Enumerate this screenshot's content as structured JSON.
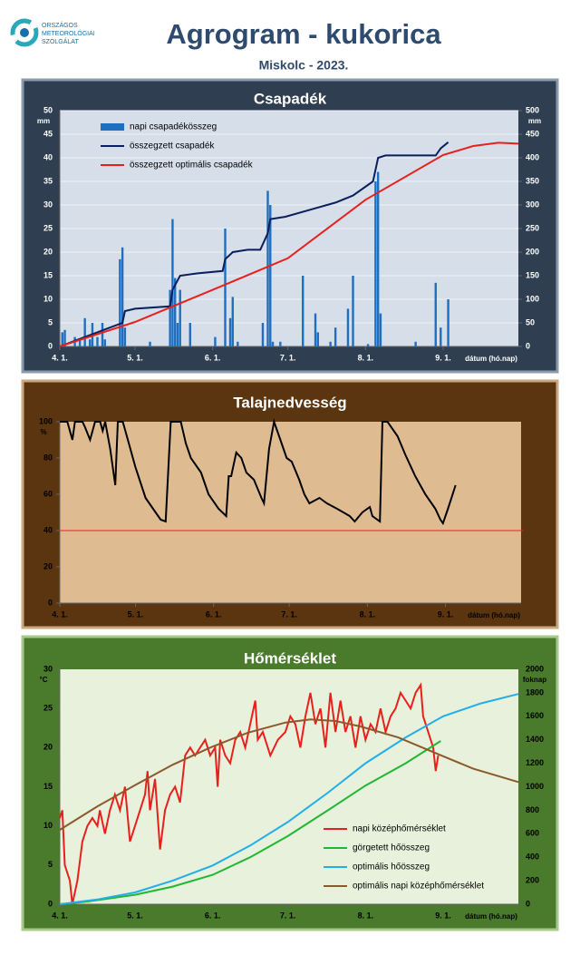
{
  "header": {
    "org": [
      "ORSZÁGOS",
      "METEOROLÓGIAI",
      "SZOLGÁLAT"
    ],
    "title": "Agrogram - kukorica",
    "subtitle": "Miskolc - 2023."
  },
  "chart_data": [
    {
      "type": "bar",
      "title": "Csapadék",
      "y_unit": "mm",
      "y2_unit": "mm",
      "x_label": "dátum (hó.nap)",
      "grid": true,
      "legend": "upper left",
      "xlim": [
        0,
        183
      ],
      "xticks": [
        {
          "value": 0,
          "label": "4. 1."
        },
        {
          "value": 30,
          "label": "5. 1."
        },
        {
          "value": 61,
          "label": "6. 1."
        },
        {
          "value": 91,
          "label": "7. 1."
        },
        {
          "value": 122,
          "label": "8. 1."
        },
        {
          "value": 153,
          "label": "9. 1."
        }
      ],
      "ylim": [
        0,
        50
      ],
      "yticks": [
        0,
        5,
        10,
        15,
        20,
        25,
        30,
        35,
        40,
        45,
        50
      ],
      "y2lim": [
        0,
        500
      ],
      "y2ticks": [
        0,
        50,
        100,
        150,
        200,
        250,
        300,
        350,
        400,
        450,
        500
      ],
      "series": [
        {
          "name": "napi csapadékösszeg",
          "type": "bar",
          "color": "#1f6fc0",
          "x": [
            1,
            2,
            6,
            8,
            10,
            12,
            13,
            15,
            17,
            18,
            24,
            25,
            26,
            36,
            44,
            45,
            46,
            47,
            48,
            52,
            62,
            66,
            68,
            69,
            71,
            81,
            83,
            84,
            85,
            88,
            97,
            102,
            103,
            108,
            110,
            115,
            117,
            123,
            126,
            127,
            128,
            142,
            150,
            152,
            155
          ],
          "values": [
            3,
            3.5,
            2,
            1.5,
            6,
            1.5,
            5,
            2,
            5,
            1.5,
            18.5,
            21,
            4,
            1,
            12,
            27,
            14.5,
            5,
            12,
            5,
            2,
            25,
            6,
            10.5,
            1,
            5,
            33,
            30,
            1,
            1,
            15,
            7,
            3,
            1,
            4,
            8,
            15,
            0.5,
            35,
            37,
            7,
            1,
            13.5,
            4,
            10
          ]
        },
        {
          "name": "összegzett csapadék",
          "type": "line",
          "axis": "y2",
          "color": "#0a1f5c",
          "x": [
            0,
            10,
            20,
            25,
            26,
            30,
            44,
            45,
            48,
            55,
            65,
            66,
            69,
            75,
            80,
            83,
            84,
            90,
            100,
            110,
            117,
            125,
            127,
            130,
            150,
            152,
            155
          ],
          "values": [
            0,
            20,
            40,
            50,
            75,
            80,
            85,
            120,
            150,
            155,
            160,
            185,
            200,
            205,
            205,
            240,
            270,
            275,
            290,
            305,
            320,
            350,
            400,
            405,
            405,
            420,
            433
          ]
        },
        {
          "name": "összegzett optimális  csapadék",
          "type": "line",
          "axis": "y2",
          "color": "#e8201c",
          "x": [
            0,
            30,
            61,
            91,
            122,
            153,
            165,
            175,
            183
          ],
          "values": [
            0,
            52,
            120,
            187,
            311,
            406,
            425,
            432,
            430
          ]
        }
      ]
    },
    {
      "type": "line",
      "title": "Talajnedvesség",
      "y_unit": "%",
      "x_label": "dátum (hó.nap)",
      "grid": false,
      "xlim": [
        0,
        183
      ],
      "xticks": [
        {
          "value": 0,
          "label": "4. 1."
        },
        {
          "value": 30,
          "label": "5. 1."
        },
        {
          "value": 61,
          "label": "6. 1."
        },
        {
          "value": 91,
          "label": "7. 1."
        },
        {
          "value": 122,
          "label": "8. 1."
        },
        {
          "value": 153,
          "label": "9. 1."
        }
      ],
      "ylim": [
        0,
        100
      ],
      "yticks": [
        0,
        20,
        40,
        60,
        80,
        100
      ],
      "series": [
        {
          "type": "line",
          "color": "#000000",
          "x": [
            0,
            3,
            5,
            6,
            9,
            10,
            12,
            14,
            16,
            17,
            18,
            20,
            22,
            23,
            25,
            27,
            30,
            34,
            38,
            40,
            42,
            44,
            48,
            50,
            52,
            56,
            59,
            63,
            66,
            67,
            68,
            70,
            72,
            74,
            77,
            80,
            81,
            83,
            85,
            87,
            90,
            92,
            95,
            97,
            99,
            103,
            106,
            110,
            115,
            117,
            120,
            123,
            124,
            127,
            128,
            130,
            134,
            137,
            141,
            145,
            149,
            151,
            152,
            154,
            157
          ],
          "values": [
            100,
            100,
            90,
            100,
            100,
            97,
            90,
            100,
            100,
            95,
            100,
            85,
            65,
            100,
            100,
            90,
            75,
            58,
            50,
            46,
            45,
            100,
            100,
            88,
            80,
            72,
            60,
            52,
            48,
            70,
            70,
            83,
            80,
            72,
            68,
            58,
            55,
            85,
            100,
            92,
            80,
            78,
            68,
            60,
            55,
            58,
            55,
            52,
            48,
            45,
            50,
            53,
            48,
            45,
            100,
            100,
            92,
            82,
            70,
            60,
            52,
            46,
            44,
            52,
            65
          ]
        },
        {
          "type": "line",
          "color": "#e8201c",
          "x": [
            0,
            184
          ],
          "values": [
            40,
            40
          ]
        }
      ]
    },
    {
      "type": "line",
      "title": "Hőmérséklet",
      "y_unit": "°C",
      "y2_unit": "foknap",
      "x_label": "dátum (hó.nap)",
      "grid": false,
      "legend": "lower right",
      "xlim": [
        0,
        183
      ],
      "xticks": [
        {
          "value": 0,
          "label": "4. 1."
        },
        {
          "value": 30,
          "label": "5. 1."
        },
        {
          "value": 61,
          "label": "6. 1."
        },
        {
          "value": 91,
          "label": "7. 1."
        },
        {
          "value": 122,
          "label": "8. 1."
        },
        {
          "value": 153,
          "label": "9. 1."
        }
      ],
      "ylim": [
        0,
        30
      ],
      "yticks": [
        0,
        5,
        10,
        15,
        20,
        25,
        30
      ],
      "y2lim": [
        0,
        2000
      ],
      "y2ticks": [
        0,
        200,
        400,
        600,
        800,
        1000,
        1200,
        1400,
        1600,
        1800,
        2000
      ],
      "series": [
        {
          "name": "napi középhőmérséklet",
          "type": "line",
          "color": "#e8201c",
          "x": [
            0,
            1,
            2,
            4,
            5,
            7,
            9,
            11,
            13,
            15,
            16,
            18,
            20,
            22,
            24,
            26,
            28,
            30,
            32,
            34,
            35,
            36,
            38,
            40,
            42,
            44,
            46,
            48,
            50,
            52,
            54,
            56,
            58,
            60,
            62,
            63,
            64,
            66,
            68,
            70,
            72,
            74,
            76,
            78,
            79,
            81,
            84,
            87,
            90,
            92,
            94,
            96,
            98,
            100,
            102,
            104,
            106,
            108,
            110,
            112,
            114,
            116,
            118,
            120,
            122,
            124,
            126,
            128,
            130,
            132,
            134,
            136,
            138,
            140,
            142,
            144,
            145,
            147,
            149,
            150,
            151
          ],
          "values": [
            11,
            12,
            5,
            3,
            0,
            3,
            8,
            10,
            11,
            10,
            12,
            9,
            12,
            14,
            12,
            15,
            8,
            10,
            12,
            14,
            17,
            12,
            16,
            7,
            12,
            14,
            15,
            13,
            19,
            20,
            19,
            20,
            21,
            19,
            20,
            15,
            21,
            19,
            18,
            21,
            22,
            20,
            23,
            26,
            21,
            22,
            19,
            21,
            22,
            24,
            23,
            20,
            24,
            27,
            23,
            25,
            20,
            27,
            22,
            26,
            22,
            24,
            20,
            24,
            21,
            23,
            22,
            25,
            22,
            24,
            25,
            27,
            26,
            25,
            27,
            28,
            24,
            22,
            20,
            17,
            19
          ]
        },
        {
          "name": "görgetett hőösszeg",
          "type": "line",
          "axis": "y2",
          "color": "#1fb832",
          "x": [
            0,
            10,
            30,
            45,
            61,
            76,
            91,
            107,
            122,
            138,
            152
          ],
          "values": [
            0,
            20,
            80,
            150,
            250,
            400,
            580,
            800,
            1010,
            1200,
            1390
          ]
        },
        {
          "name": "optimális hőösszeg",
          "type": "line",
          "axis": "y2",
          "color": "#22aee8",
          "x": [
            0,
            15,
            30,
            45,
            61,
            76,
            91,
            107,
            122,
            138,
            153,
            168,
            183
          ],
          "values": [
            0,
            40,
            100,
            200,
            330,
            500,
            700,
            950,
            1200,
            1420,
            1600,
            1710,
            1790
          ]
        },
        {
          "name": "optimális napi középhőmérséklet",
          "type": "line",
          "color": "#8b5a2b",
          "x": [
            0,
            15,
            30,
            45,
            60,
            75,
            90,
            100,
            110,
            120,
            135,
            150,
            165,
            183
          ],
          "values": [
            9.5,
            12.5,
            15.2,
            17.8,
            20,
            21.9,
            23.2,
            23.6,
            23.4,
            22.7,
            21.3,
            19.3,
            17.3,
            15.6
          ]
        }
      ]
    }
  ]
}
